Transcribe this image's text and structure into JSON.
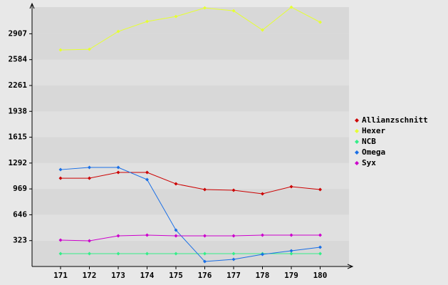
{
  "chart_data": {
    "type": "line",
    "categories": [
      "171",
      "172",
      "173",
      "174",
      "175",
      "176",
      "177",
      "178",
      "179",
      "180"
    ],
    "series": [
      {
        "name": "Allianzschnitt",
        "color": "#cc0000",
        "values": [
          1103,
          1103,
          1175,
          1175,
          1032,
          961,
          952,
          908,
          997,
          961
        ]
      },
      {
        "name": "Hexer",
        "color": "#e6ff33",
        "values": [
          2705,
          2714,
          2936,
          3061,
          3123,
          3230,
          3194,
          2954,
          3239,
          3052
        ]
      },
      {
        "name": "NCB",
        "color": "#33ee88",
        "values": [
          160,
          160,
          160,
          160,
          160,
          160,
          160,
          160,
          160,
          160
        ]
      },
      {
        "name": "Omega",
        "color": "#1a6fe6",
        "values": [
          1210,
          1237,
          1237,
          1086,
          454,
          62,
          89,
          151,
          196,
          240
        ]
      },
      {
        "name": "Syx",
        "color": "#cc00cc",
        "values": [
          329,
          320,
          383,
          392,
          383,
          383,
          383,
          392,
          392,
          392
        ]
      }
    ],
    "ylim": [
      0,
      3240
    ],
    "yticks": [
      323,
      646,
      969,
      1292,
      1615,
      1938,
      2261,
      2584,
      2907
    ],
    "grid": true,
    "legend": "right"
  }
}
